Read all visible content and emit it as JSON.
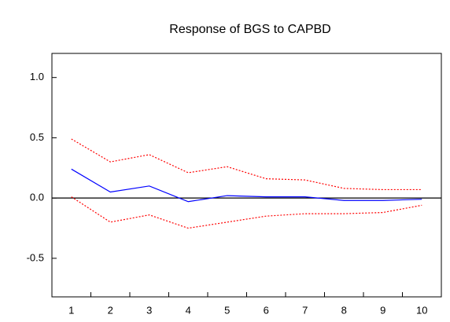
{
  "chart_data": {
    "type": "line",
    "title": "Response of BGS to CAPBD",
    "categories": [
      "1",
      "2",
      "3",
      "4",
      "5",
      "6",
      "7",
      "8",
      "9",
      "10"
    ],
    "series": [
      {
        "color": "#0000ff",
        "dash": "solid",
        "values": [
          0.24,
          0.05,
          0.1,
          -0.03,
          0.02,
          0.01,
          0.01,
          -0.02,
          -0.02,
          -0.01
        ]
      },
      {
        "color": "#ff0000",
        "dash": "dotted",
        "values": [
          0.49,
          0.3,
          0.36,
          0.21,
          0.26,
          0.16,
          0.15,
          0.08,
          0.07,
          0.07
        ]
      },
      {
        "color": "#ff0000",
        "dash": "dotted",
        "values": [
          0.01,
          -0.2,
          -0.14,
          -0.25,
          -0.2,
          -0.15,
          -0.13,
          -0.13,
          -0.12,
          -0.06
        ]
      }
    ],
    "ylim": [
      -0.82,
      1.2
    ],
    "yticks": [
      {
        "value": -0.5,
        "label": "-0.5"
      },
      {
        "value": 0,
        "label": "0.0"
      },
      {
        "value": 0.5,
        "label": "0.5"
      },
      {
        "value": 1,
        "label": "1.0"
      }
    ],
    "zero_line": true
  }
}
